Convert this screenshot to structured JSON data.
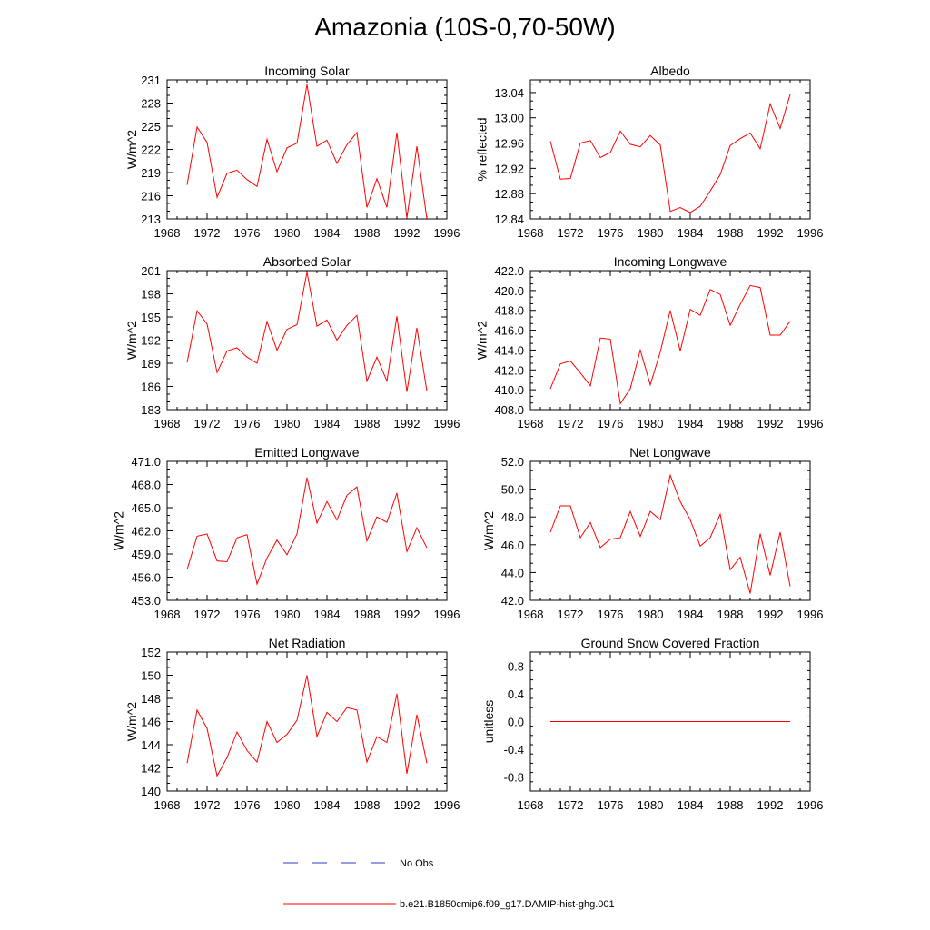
{
  "title": "Amazonia (10S-0,70-50W)",
  "legend": {
    "obs_label": "No Obs",
    "obs_color": "#3333cc",
    "model_label": "b.e21.B1850cmip6.f09_g17.DAMIP-hist-ghg.001",
    "model_color": "#ff0000"
  },
  "chart_data": [
    {
      "type": "line",
      "title": "Incoming Solar",
      "ylabel": "W/m^2",
      "xlim": [
        1968,
        1996
      ],
      "ylim": [
        213,
        231
      ],
      "xticks": [
        "1968",
        "1972",
        "1976",
        "1980",
        "1984",
        "1988",
        "1992",
        "1996"
      ],
      "yticks": [
        "213",
        "216",
        "219",
        "222",
        "225",
        "228",
        "231"
      ],
      "x": [
        1970,
        1971,
        1972,
        1973,
        1974,
        1975,
        1976,
        1977,
        1978,
        1979,
        1980,
        1981,
        1982,
        1983,
        1984,
        1985,
        1986,
        1987,
        1988,
        1989,
        1990,
        1991,
        1992,
        1993,
        1994
      ],
      "values": [
        217.4,
        224.9,
        222.9,
        215.8,
        218.9,
        219.3,
        218.1,
        217.2,
        223.3,
        219.1,
        222.2,
        222.8,
        230.4,
        222.4,
        223.2,
        220.2,
        222.6,
        224.2,
        214.5,
        218.2,
        214.5,
        224.2,
        213.1,
        222.4,
        213.0
      ]
    },
    {
      "type": "line",
      "title": "Albedo",
      "ylabel": "% reflected",
      "xlim": [
        1968,
        1996
      ],
      "ylim": [
        12.84,
        13.06
      ],
      "xticks": [
        "1968",
        "1972",
        "1976",
        "1980",
        "1984",
        "1988",
        "1992",
        "1996"
      ],
      "yticks": [
        "12.84",
        "12.88",
        "12.92",
        "12.96",
        "13.00",
        "13.04"
      ],
      "x": [
        1970,
        1971,
        1972,
        1973,
        1974,
        1975,
        1976,
        1977,
        1978,
        1979,
        1980,
        1981,
        1982,
        1983,
        1984,
        1985,
        1986,
        1987,
        1988,
        1989,
        1990,
        1991,
        1992,
        1993,
        1994
      ],
      "values": [
        12.963,
        12.903,
        12.904,
        12.96,
        12.964,
        12.937,
        12.945,
        12.979,
        12.958,
        12.954,
        12.972,
        12.957,
        12.852,
        12.858,
        12.85,
        12.86,
        12.884,
        12.91,
        12.956,
        12.967,
        12.976,
        12.951,
        13.022,
        12.983,
        13.037
      ]
    },
    {
      "type": "line",
      "title": "Absorbed Solar",
      "ylabel": "W/m^2",
      "xlim": [
        1968,
        1996
      ],
      "ylim": [
        183,
        201
      ],
      "xticks": [
        "1968",
        "1972",
        "1976",
        "1980",
        "1984",
        "1988",
        "1992",
        "1996"
      ],
      "yticks": [
        "183",
        "186",
        "189",
        "192",
        "195",
        "198",
        "201"
      ],
      "x": [
        1970,
        1971,
        1972,
        1973,
        1974,
        1975,
        1976,
        1977,
        1978,
        1979,
        1980,
        1981,
        1982,
        1983,
        1984,
        1985,
        1986,
        1987,
        1988,
        1989,
        1990,
        1991,
        1992,
        1993,
        1994
      ],
      "values": [
        189.1,
        195.8,
        194.1,
        187.8,
        190.6,
        191.0,
        189.8,
        189.0,
        194.4,
        190.7,
        193.4,
        194.0,
        200.8,
        193.8,
        194.6,
        192.0,
        193.9,
        195.2,
        186.7,
        189.8,
        186.7,
        195.1,
        185.3,
        193.6,
        185.4
      ]
    },
    {
      "type": "line",
      "title": "Incoming Longwave",
      "ylabel": "W/m^2",
      "xlim": [
        1968,
        1996
      ],
      "ylim": [
        408.0,
        422.0
      ],
      "xticks": [
        "1968",
        "1972",
        "1976",
        "1980",
        "1984",
        "1988",
        "1992",
        "1996"
      ],
      "yticks": [
        "408.0",
        "410.0",
        "412.0",
        "414.0",
        "416.0",
        "418.0",
        "420.0",
        "422.0"
      ],
      "x": [
        1970,
        1971,
        1972,
        1973,
        1974,
        1975,
        1976,
        1977,
        1978,
        1979,
        1980,
        1981,
        1982,
        1983,
        1984,
        1985,
        1986,
        1987,
        1988,
        1989,
        1990,
        1991,
        1992,
        1993,
        1994
      ],
      "values": [
        410.1,
        412.6,
        412.9,
        411.7,
        410.4,
        415.2,
        415.1,
        408.6,
        410.1,
        414.0,
        410.5,
        413.8,
        418.0,
        413.9,
        418.1,
        417.5,
        420.1,
        419.6,
        416.5,
        418.6,
        420.5,
        420.3,
        415.5,
        415.5,
        416.9
      ]
    },
    {
      "type": "line",
      "title": "Emitted Longwave",
      "ylabel": "W/m^2",
      "xlim": [
        1968,
        1996
      ],
      "ylim": [
        453.0,
        471.0
      ],
      "xticks": [
        "1968",
        "1972",
        "1976",
        "1980",
        "1984",
        "1988",
        "1992",
        "1996"
      ],
      "yticks": [
        "453.0",
        "456.0",
        "459.0",
        "462.0",
        "465.0",
        "468.0",
        "471.0"
      ],
      "x": [
        1970,
        1971,
        1972,
        1973,
        1974,
        1975,
        1976,
        1977,
        1978,
        1979,
        1980,
        1981,
        1982,
        1983,
        1984,
        1985,
        1986,
        1987,
        1988,
        1989,
        1990,
        1991,
        1992,
        1993,
        1994
      ],
      "values": [
        457.0,
        461.3,
        461.6,
        458.1,
        458.0,
        461.1,
        461.5,
        455.1,
        458.5,
        460.8,
        458.9,
        461.6,
        468.9,
        463.0,
        465.8,
        463.4,
        466.6,
        467.7,
        460.7,
        463.8,
        463.1,
        466.9,
        459.3,
        462.4,
        459.8
      ]
    },
    {
      "type": "line",
      "title": "Net Longwave",
      "ylabel": "W/m^2",
      "xlim": [
        1968,
        1996
      ],
      "ylim": [
        42.0,
        52.0
      ],
      "xticks": [
        "1968",
        "1972",
        "1976",
        "1980",
        "1984",
        "1988",
        "1992",
        "1996"
      ],
      "yticks": [
        "42.0",
        "44.0",
        "46.0",
        "48.0",
        "50.0",
        "52.0"
      ],
      "x": [
        1970,
        1971,
        1972,
        1973,
        1974,
        1975,
        1976,
        1977,
        1978,
        1979,
        1980,
        1981,
        1982,
        1983,
        1984,
        1985,
        1986,
        1987,
        1988,
        1989,
        1990,
        1991,
        1992,
        1993,
        1994
      ],
      "values": [
        46.9,
        48.8,
        48.8,
        46.5,
        47.6,
        45.8,
        46.4,
        46.5,
        48.4,
        46.6,
        48.4,
        47.8,
        51.0,
        49.1,
        47.8,
        45.9,
        46.5,
        48.2,
        44.2,
        45.1,
        42.5,
        46.8,
        43.8,
        46.9,
        43.0
      ]
    },
    {
      "type": "line",
      "title": "Net Radiation",
      "ylabel": "W/m^2",
      "xlim": [
        1968,
        1996
      ],
      "ylim": [
        140,
        152
      ],
      "xticks": [
        "1968",
        "1972",
        "1976",
        "1980",
        "1984",
        "1988",
        "1992",
        "1996"
      ],
      "yticks": [
        "140",
        "142",
        "144",
        "146",
        "148",
        "150",
        "152"
      ],
      "x": [
        1970,
        1971,
        1972,
        1973,
        1974,
        1975,
        1976,
        1977,
        1978,
        1979,
        1980,
        1981,
        1982,
        1983,
        1984,
        1985,
        1986,
        1987,
        1988,
        1989,
        1990,
        1991,
        1992,
        1993,
        1994
      ],
      "values": [
        142.4,
        147.0,
        145.4,
        141.3,
        142.9,
        145.1,
        143.5,
        142.5,
        146.0,
        144.2,
        144.9,
        146.1,
        150.0,
        144.7,
        146.8,
        146.0,
        147.2,
        147.0,
        142.5,
        144.7,
        144.2,
        148.4,
        141.5,
        146.6,
        142.4
      ]
    },
    {
      "type": "line",
      "title": "Ground Snow Covered Fraction",
      "ylabel": "unitless",
      "xlim": [
        1968,
        1996
      ],
      "ylim": [
        -1.0,
        1.0
      ],
      "xticks": [
        "1968",
        "1972",
        "1976",
        "1980",
        "1984",
        "1988",
        "1992",
        "1996"
      ],
      "yticks": [
        "-0.8",
        "-0.4",
        "0.0",
        "0.4",
        "0.8"
      ],
      "x": [
        1970,
        1971,
        1972,
        1973,
        1974,
        1975,
        1976,
        1977,
        1978,
        1979,
        1980,
        1981,
        1982,
        1983,
        1984,
        1985,
        1986,
        1987,
        1988,
        1989,
        1990,
        1991,
        1992,
        1993,
        1994
      ],
      "values": [
        0,
        0,
        0,
        0,
        0,
        0,
        0,
        0,
        0,
        0,
        0,
        0,
        0,
        0,
        0,
        0,
        0,
        0,
        0,
        0,
        0,
        0,
        0,
        0,
        0
      ]
    }
  ]
}
